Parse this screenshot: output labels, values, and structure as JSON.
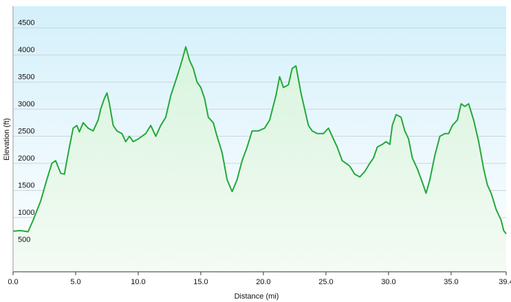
{
  "chart_data": {
    "type": "area",
    "title": "",
    "xlabel": "Distance (mi)",
    "ylabel": "Elevation (ft)",
    "xlim": [
      0,
      39.4
    ],
    "ylim": [
      0,
      4900
    ],
    "x_ticks": [
      "0.0",
      "5.0",
      "10.0",
      "15.0",
      "20.0",
      "25.0",
      "30.0",
      "35.0",
      "39.4"
    ],
    "x_tick_values": [
      0,
      5,
      10,
      15,
      20,
      25,
      30,
      35,
      39.4
    ],
    "y_ticks": [
      "500",
      "1000",
      "1500",
      "2000",
      "2500",
      "3000",
      "3500",
      "4000",
      "4500"
    ],
    "y_tick_values": [
      500,
      1000,
      1500,
      2000,
      2500,
      3000,
      3500,
      4000,
      4500
    ],
    "grid": true,
    "legend": "none",
    "series": [
      {
        "x": [
          0,
          0.6,
          1.2,
          1.6,
          2.2,
          2.7,
          3.1,
          3.4,
          3.8,
          4.1,
          4.5,
          4.8,
          5.1,
          5.3,
          5.6,
          6.0,
          6.4,
          6.8,
          7.0,
          7.3,
          7.5,
          7.7,
          8.0,
          8.3,
          8.7,
          9.0,
          9.3,
          9.6,
          10.0,
          10.3,
          10.6,
          11.0,
          11.4,
          11.8,
          12.2,
          12.6,
          13.1,
          13.5,
          13.8,
          14.1,
          14.4,
          14.7,
          15.0,
          15.3,
          15.6,
          16.0,
          16.3,
          16.7,
          17.1,
          17.5,
          17.9,
          18.3,
          18.7,
          19.1,
          19.6,
          20.1,
          20.5,
          21.0,
          21.3,
          21.6,
          22.0,
          22.3,
          22.6,
          23.0,
          23.3,
          23.6,
          23.9,
          24.3,
          24.8,
          25.2,
          25.5,
          25.9,
          26.3,
          26.6,
          26.9,
          27.3,
          27.7,
          28.1,
          28.5,
          28.8,
          29.1,
          29.5,
          29.8,
          30.1,
          30.3,
          30.6,
          31.0,
          31.3,
          31.6,
          31.9,
          32.3,
          32.7,
          33.0,
          33.3,
          33.7,
          34.1,
          34.5,
          34.8,
          35.1,
          35.5,
          35.8,
          36.1,
          36.4,
          36.8,
          37.2,
          37.6,
          37.9,
          38.2,
          38.6,
          39.0,
          39.2,
          39.4
        ],
        "values": [
          750,
          760,
          740,
          950,
          1300,
          1700,
          2000,
          2050,
          1820,
          1800,
          2300,
          2650,
          2700,
          2580,
          2750,
          2650,
          2600,
          2800,
          3000,
          3200,
          3300,
          3100,
          2700,
          2600,
          2550,
          2400,
          2500,
          2400,
          2450,
          2500,
          2550,
          2700,
          2500,
          2700,
          2850,
          3250,
          3600,
          3900,
          4150,
          3900,
          3750,
          3500,
          3400,
          3200,
          2850,
          2750,
          2500,
          2200,
          1700,
          1480,
          1700,
          2050,
          2300,
          2600,
          2600,
          2650,
          2800,
          3250,
          3600,
          3400,
          3450,
          3750,
          3800,
          3300,
          3000,
          2700,
          2600,
          2550,
          2550,
          2650,
          2500,
          2300,
          2050,
          2000,
          1950,
          1800,
          1750,
          1850,
          2000,
          2100,
          2300,
          2350,
          2400,
          2350,
          2700,
          2900,
          2850,
          2600,
          2450,
          2100,
          1900,
          1650,
          1450,
          1700,
          2150,
          2500,
          2550,
          2550,
          2700,
          2800,
          3100,
          3050,
          3100,
          2800,
          2400,
          1900,
          1600,
          1450,
          1150,
          950,
          760,
          700
        ]
      }
    ]
  }
}
